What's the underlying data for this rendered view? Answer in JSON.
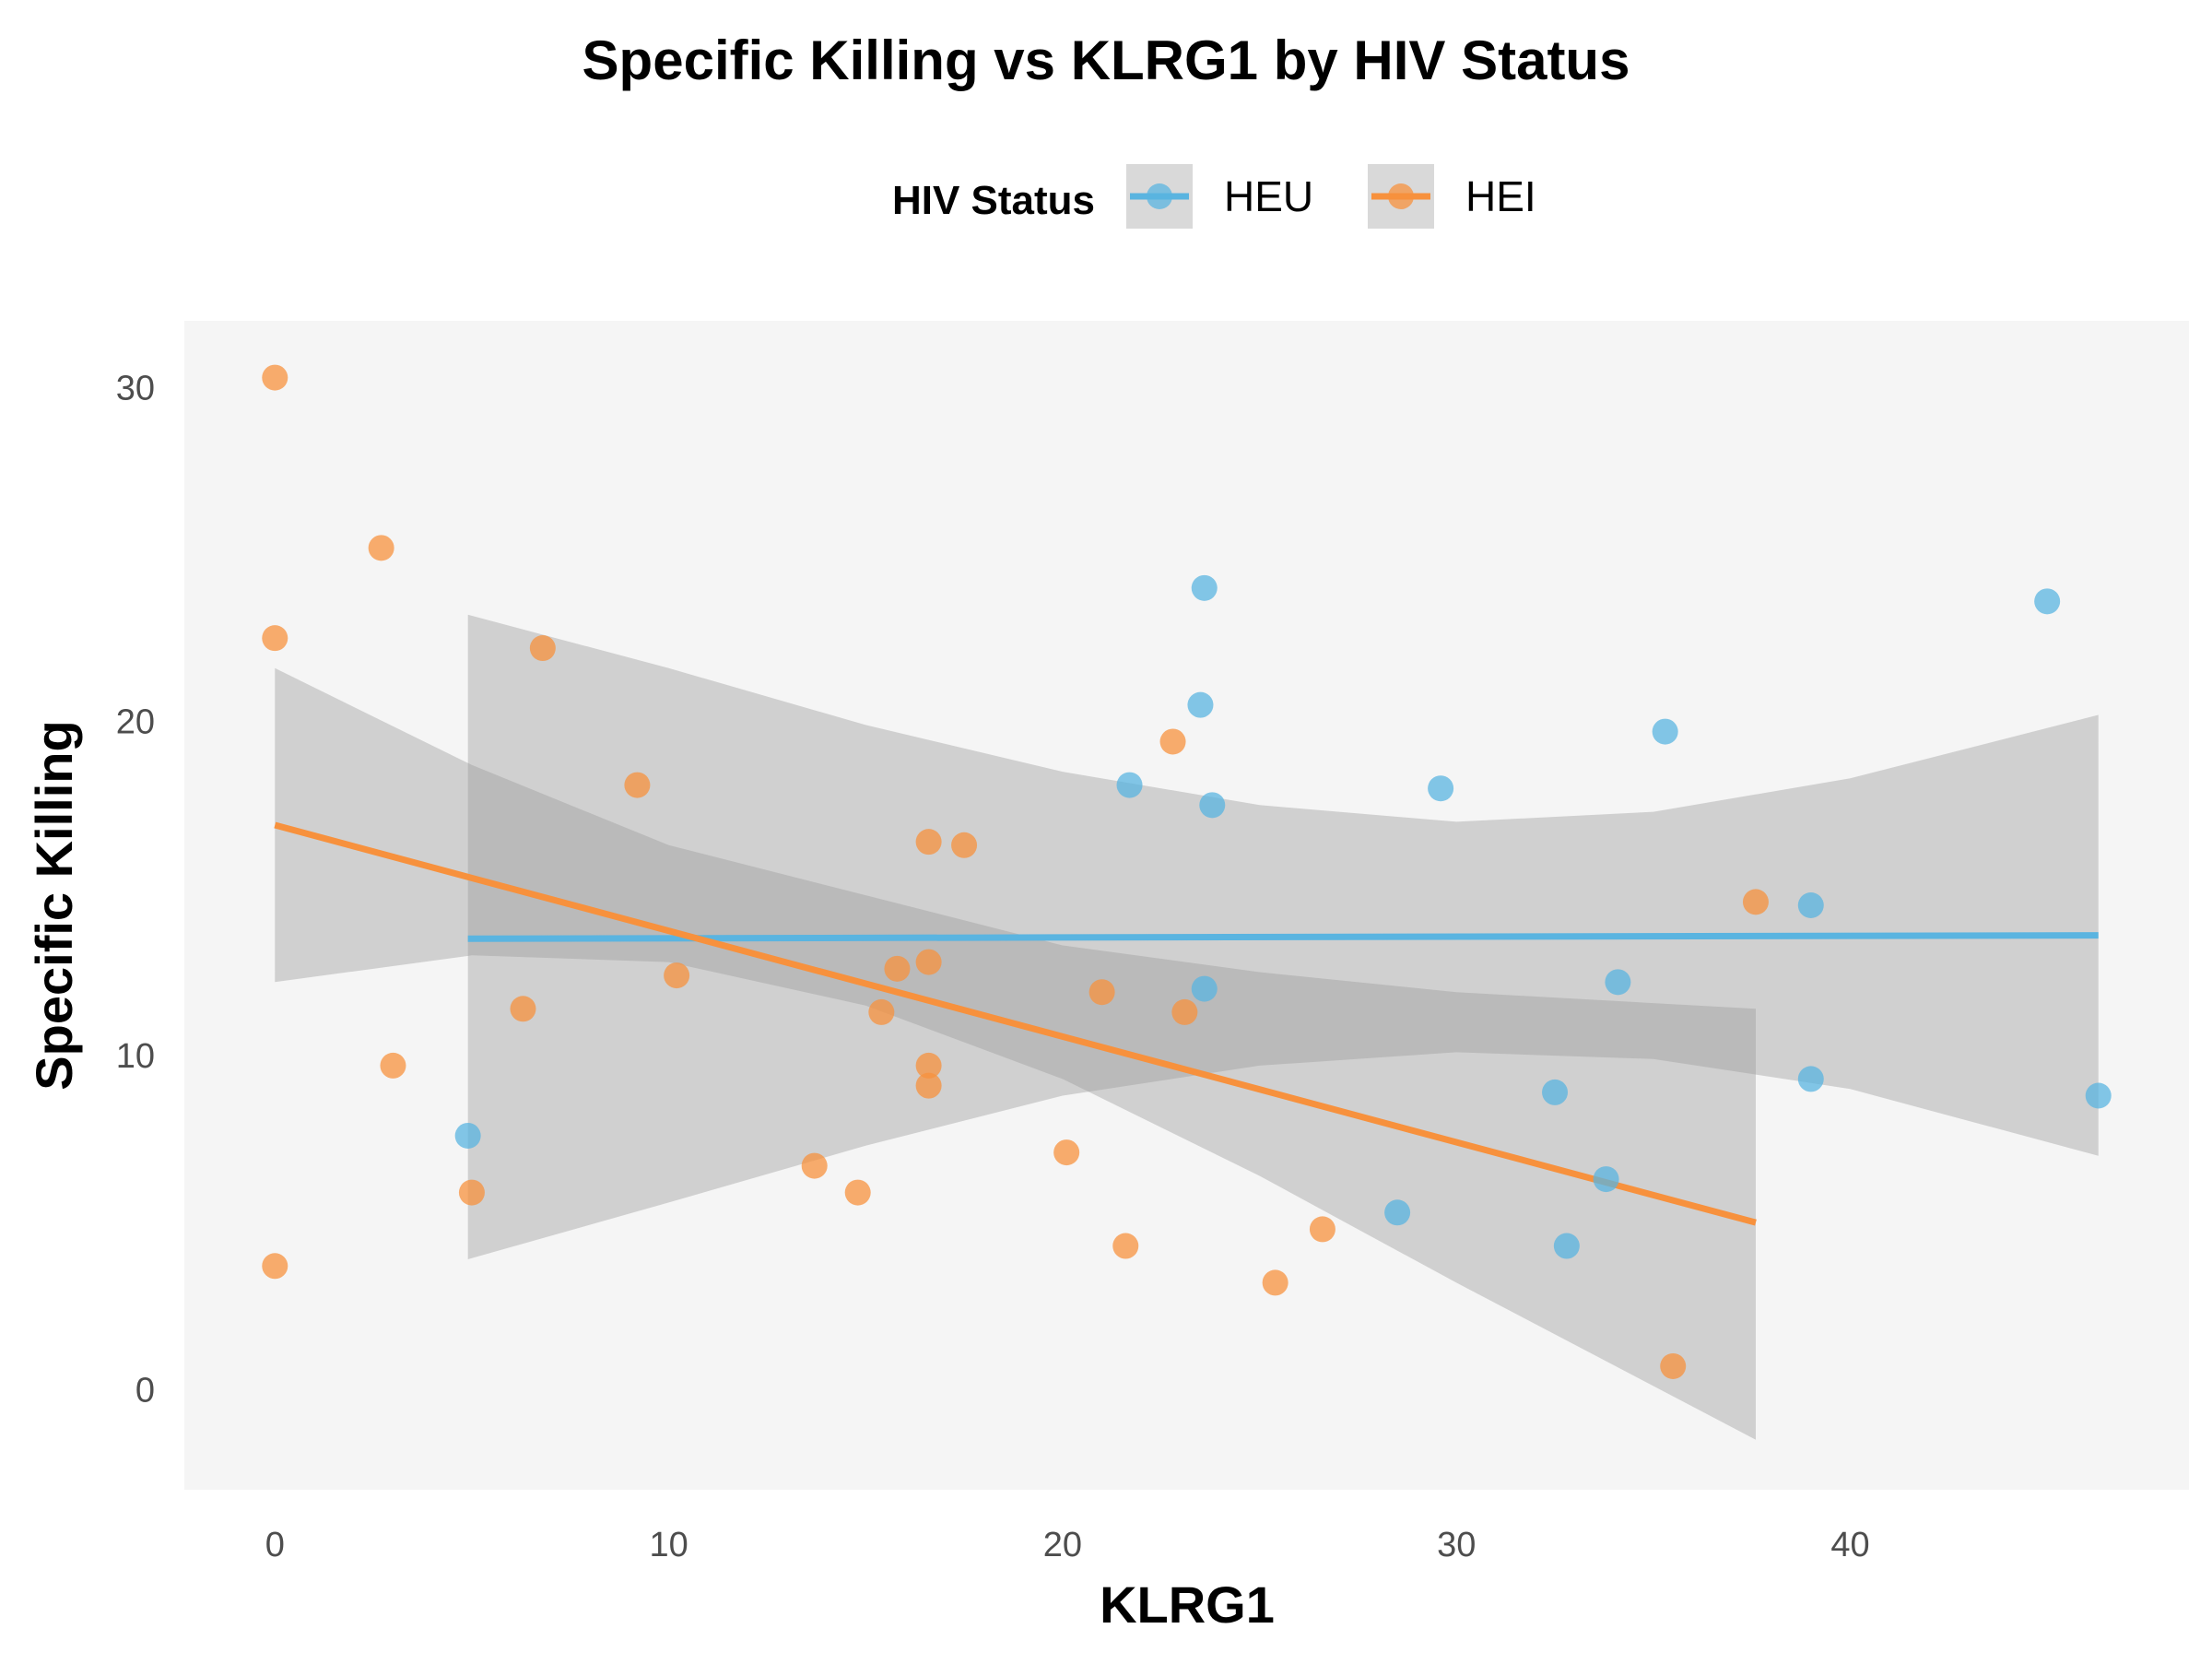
{
  "chart_data": {
    "type": "scatter",
    "title": "Specific Killing vs KLRG1 by HIV Status",
    "xlabel": "KLRG1",
    "ylabel": "Specific Killing",
    "xlim": [
      -2.3,
      48.6
    ],
    "ylim": [
      -3.0,
      32.0
    ],
    "x_ticks": [
      0,
      10,
      20,
      30,
      40
    ],
    "y_ticks": [
      0,
      10,
      20,
      30
    ],
    "grid": false,
    "panel_background": "#f5f5f5",
    "legend": {
      "title": "HIV Status",
      "position": "top",
      "entries": [
        "HEU",
        "HEI"
      ]
    },
    "series": [
      {
        "name": "HEU",
        "color": "#5ab4e0",
        "points": [
          [
            4.9,
            7.6
          ],
          [
            21.7,
            18.1
          ],
          [
            23.5,
            20.5
          ],
          [
            23.6,
            24.0
          ],
          [
            23.6,
            12.0
          ],
          [
            23.8,
            17.5
          ],
          [
            28.5,
            5.3
          ],
          [
            29.6,
            18.0
          ],
          [
            32.5,
            8.9
          ],
          [
            32.8,
            4.3
          ],
          [
            33.8,
            6.3
          ],
          [
            34.1,
            12.2
          ],
          [
            35.3,
            19.7
          ],
          [
            39.0,
            14.5
          ],
          [
            39.0,
            9.3
          ],
          [
            45.0,
            23.6
          ],
          [
            46.3,
            8.8
          ]
        ],
        "trend": {
          "x": [
            4.9,
            46.3
          ],
          "y": [
            13.5,
            13.6
          ]
        },
        "band": {
          "x": [
            4.9,
            10,
            15,
            20,
            25,
            30,
            35,
            40,
            46.3
          ],
          "lower": [
            3.9,
            5.6,
            7.3,
            8.8,
            9.7,
            10.1,
            9.9,
            9.0,
            7.0
          ],
          "upper": [
            23.2,
            21.6,
            19.9,
            18.5,
            17.5,
            17.0,
            17.3,
            18.3,
            20.2
          ]
        }
      },
      {
        "name": "HEI",
        "color": "#f7913d",
        "points": [
          [
            0.0,
            30.3
          ],
          [
            0.0,
            22.5
          ],
          [
            0.0,
            3.7
          ],
          [
            2.7,
            25.2
          ],
          [
            3.0,
            9.7
          ],
          [
            5.0,
            5.9
          ],
          [
            6.3,
            11.4
          ],
          [
            6.8,
            22.2
          ],
          [
            9.2,
            18.1
          ],
          [
            10.2,
            12.4
          ],
          [
            13.7,
            6.7
          ],
          [
            14.8,
            5.9
          ],
          [
            15.4,
            11.3
          ],
          [
            15.8,
            12.6
          ],
          [
            16.6,
            16.4
          ],
          [
            16.6,
            12.8
          ],
          [
            16.6,
            9.7
          ],
          [
            16.6,
            9.1
          ],
          [
            17.5,
            16.3
          ],
          [
            20.1,
            7.1
          ],
          [
            21.0,
            11.9
          ],
          [
            21.6,
            4.3
          ],
          [
            22.8,
            19.4
          ],
          [
            23.1,
            11.3
          ],
          [
            25.4,
            3.2
          ],
          [
            26.6,
            4.8
          ],
          [
            35.5,
            0.7
          ],
          [
            37.6,
            14.6
          ]
        ],
        "trend": {
          "x": [
            0.0,
            37.6
          ],
          "y": [
            16.9,
            5.0
          ]
        },
        "band": {
          "x": [
            0,
            5,
            10,
            15,
            20,
            25,
            30,
            37.6
          ],
          "lower": [
            12.2,
            13.0,
            12.8,
            11.5,
            9.3,
            6.4,
            3.2,
            -1.5
          ],
          "upper": [
            21.6,
            18.7,
            16.3,
            14.8,
            13.3,
            12.5,
            11.9,
            11.4
          ]
        }
      }
    ]
  }
}
